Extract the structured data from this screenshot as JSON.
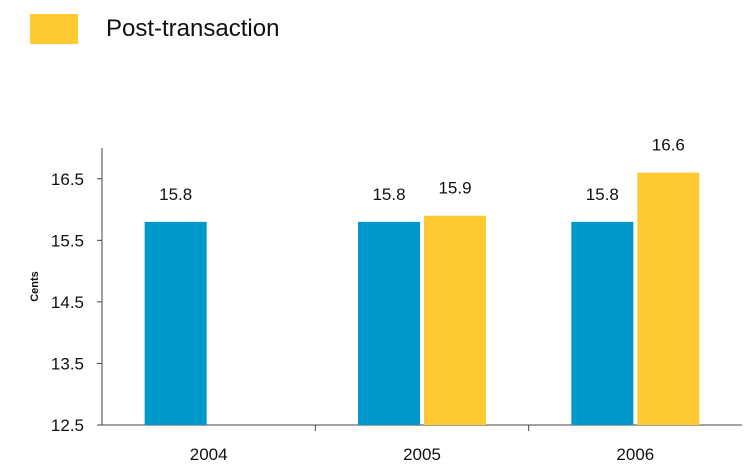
{
  "chart_data": {
    "type": "bar",
    "categories": [
      "2004",
      "2005",
      "2006"
    ],
    "series": [
      {
        "values": [
          15.8,
          15.8,
          15.8
        ],
        "labels": [
          "15.8",
          "15.8",
          "15.8"
        ],
        "color": "#0099cc"
      },
      {
        "name": "Post-transaction",
        "values": [
          null,
          15.9,
          16.6
        ],
        "labels": [
          "",
          "15.9",
          "16.6"
        ],
        "color": "#ffc933"
      }
    ],
    "ylabel": "Cents",
    "ylim": [
      12.5,
      17.0
    ],
    "yticks": [
      12.5,
      13.5,
      14.5,
      15.5,
      16.5
    ],
    "ytick_labels": [
      "12.5",
      "13.5",
      "14.5",
      "15.5",
      "16.5"
    ],
    "grid": false,
    "legend_position": "top-left"
  }
}
